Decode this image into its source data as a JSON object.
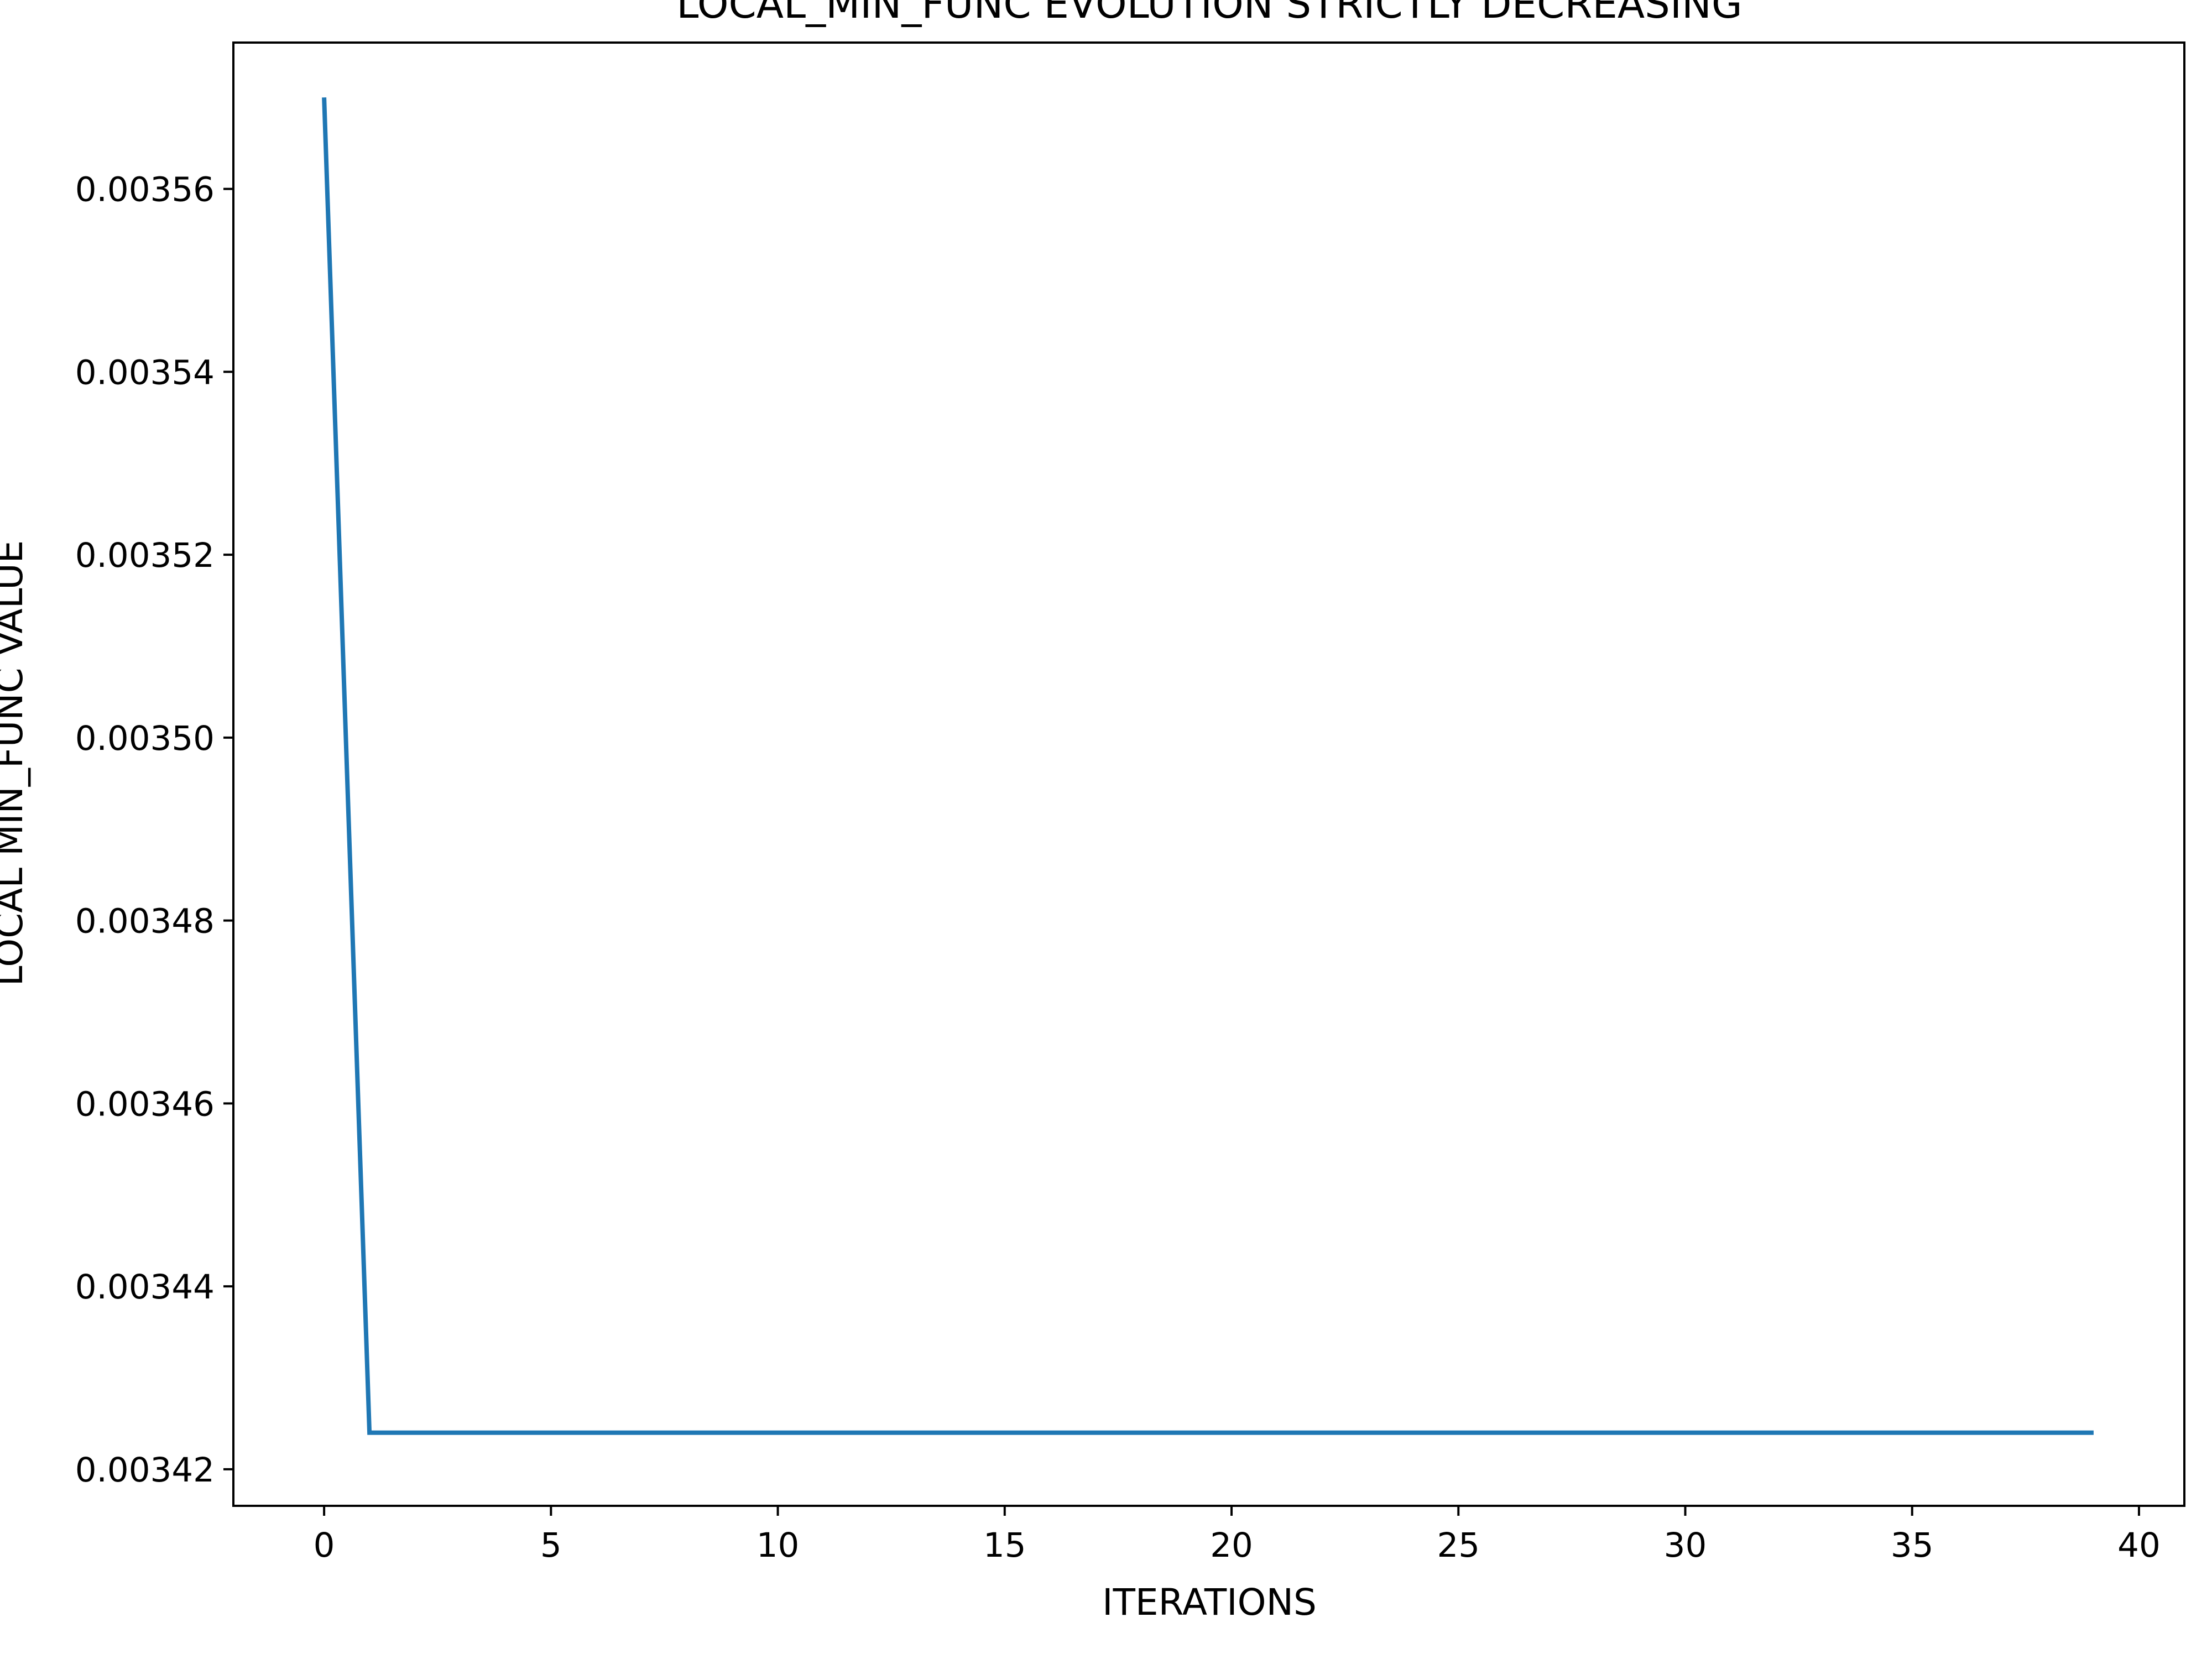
{
  "chart_data": {
    "type": "line",
    "title": "LOCAL_MIN_FUNC EVOLUTION STRICTLY DECREASING",
    "xlabel": "ITERATIONS",
    "ylabel": "LOCAL MIN_FUNC VALUE",
    "xlim": [
      -2,
      41
    ],
    "ylim": [
      0.003416,
      0.003576
    ],
    "x_ticks": [
      0,
      5,
      10,
      15,
      20,
      25,
      30,
      35,
      40
    ],
    "x_tick_labels": [
      "0",
      "5",
      "10",
      "15",
      "20",
      "25",
      "30",
      "35",
      "40"
    ],
    "y_ticks": [
      0.00342,
      0.00344,
      0.00346,
      0.00348,
      0.0035,
      0.00352,
      0.00354,
      0.00356
    ],
    "y_tick_labels": [
      "0.00342",
      "0.00344",
      "0.00346",
      "0.00348",
      "0.00350",
      "0.00352",
      "0.00354",
      "0.00356"
    ],
    "grid": false,
    "series": [
      {
        "color": "#1f77b4",
        "x": [
          0,
          1,
          39
        ],
        "y": [
          0.00357,
          0.003424,
          0.003424
        ]
      }
    ]
  }
}
